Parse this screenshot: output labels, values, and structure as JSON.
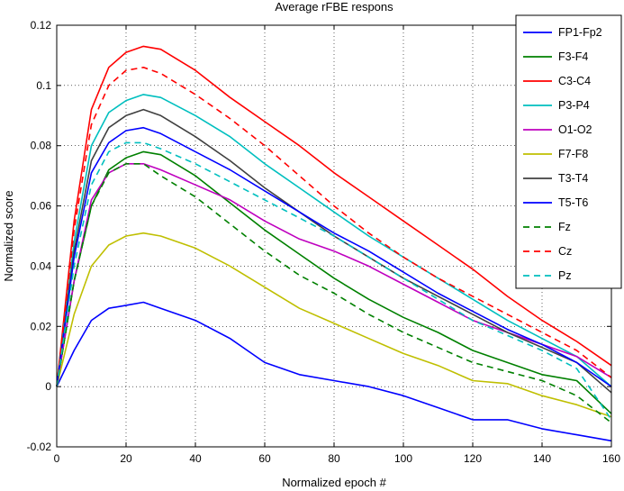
{
  "chart_data": {
    "type": "line",
    "title": "Average rFBE respons",
    "xlabel": "Normalized epoch #",
    "ylabel": "Normalized score",
    "xlim": [
      0,
      160
    ],
    "ylim": [
      -0.02,
      0.12
    ],
    "xticks": [
      0,
      20,
      40,
      60,
      80,
      100,
      120,
      140,
      160
    ],
    "yticks": [
      -0.02,
      0,
      0.02,
      0.04,
      0.06,
      0.08,
      0.1,
      0.12
    ],
    "grid": true,
    "legend_position": "top-right",
    "x": [
      0,
      5,
      10,
      15,
      20,
      25,
      30,
      40,
      50,
      60,
      70,
      80,
      90,
      100,
      110,
      120,
      130,
      140,
      150,
      160
    ],
    "series": [
      {
        "name": "FP1-Fp2",
        "color": "#0000ff",
        "dash": "solid",
        "values": [
          0,
          0.012,
          0.022,
          0.026,
          0.027,
          0.028,
          0.026,
          0.022,
          0.016,
          0.008,
          0.004,
          0.002,
          0.0,
          -0.003,
          -0.007,
          -0.011,
          -0.011,
          -0.014,
          -0.016,
          -0.018
        ]
      },
      {
        "name": "F3-F4",
        "color": "#008000",
        "dash": "solid",
        "values": [
          0,
          0.035,
          0.06,
          0.072,
          0.076,
          0.078,
          0.077,
          0.07,
          0.061,
          0.052,
          0.044,
          0.036,
          0.029,
          0.023,
          0.018,
          0.012,
          0.008,
          0.004,
          0.002,
          -0.009
        ]
      },
      {
        "name": "C3-C4",
        "color": "#ff0000",
        "dash": "solid",
        "values": [
          0,
          0.055,
          0.092,
          0.106,
          0.111,
          0.113,
          0.112,
          0.105,
          0.096,
          0.088,
          0.08,
          0.071,
          0.063,
          0.055,
          0.047,
          0.039,
          0.03,
          0.022,
          0.015,
          0.007
        ]
      },
      {
        "name": "P3-P4",
        "color": "#00bfbf",
        "dash": "solid",
        "values": [
          0,
          0.048,
          0.08,
          0.091,
          0.095,
          0.097,
          0.096,
          0.09,
          0.083,
          0.074,
          0.066,
          0.058,
          0.05,
          0.043,
          0.036,
          0.029,
          0.022,
          0.016,
          0.01,
          0.0
        ]
      },
      {
        "name": "O1-O2",
        "color": "#bf00bf",
        "dash": "solid",
        "values": [
          0,
          0.035,
          0.062,
          0.071,
          0.074,
          0.074,
          0.072,
          0.067,
          0.062,
          0.055,
          0.049,
          0.045,
          0.04,
          0.034,
          0.028,
          0.022,
          0.018,
          0.014,
          0.01,
          0.003
        ]
      },
      {
        "name": "F7-F8",
        "color": "#bfbf00",
        "dash": "solid",
        "values": [
          0,
          0.024,
          0.04,
          0.047,
          0.05,
          0.051,
          0.05,
          0.046,
          0.04,
          0.033,
          0.026,
          0.021,
          0.016,
          0.011,
          0.007,
          0.002,
          0.001,
          -0.003,
          -0.006,
          -0.01
        ]
      },
      {
        "name": "T3-T4",
        "color": "#404040",
        "dash": "solid",
        "values": [
          0,
          0.045,
          0.075,
          0.086,
          0.09,
          0.092,
          0.09,
          0.083,
          0.075,
          0.066,
          0.058,
          0.05,
          0.043,
          0.036,
          0.03,
          0.024,
          0.018,
          0.013,
          0.008,
          -0.002
        ]
      },
      {
        "name": "T5-T6",
        "color": "#0000ff",
        "dash": "solid",
        "values": [
          0,
          0.043,
          0.071,
          0.081,
          0.085,
          0.086,
          0.084,
          0.078,
          0.072,
          0.065,
          0.058,
          0.051,
          0.045,
          0.038,
          0.031,
          0.025,
          0.019,
          0.014,
          0.008,
          0.0
        ]
      },
      {
        "name": "Fz",
        "color": "#008000",
        "dash": "dashed",
        "values": [
          0,
          0.035,
          0.06,
          0.071,
          0.074,
          0.074,
          0.07,
          0.063,
          0.054,
          0.045,
          0.037,
          0.031,
          0.024,
          0.018,
          0.013,
          0.008,
          0.005,
          0.002,
          -0.003,
          -0.012
        ]
      },
      {
        "name": "Cz",
        "color": "#ff0000",
        "dash": "dashed",
        "values": [
          0,
          0.052,
          0.087,
          0.1,
          0.105,
          0.106,
          0.104,
          0.097,
          0.089,
          0.08,
          0.07,
          0.06,
          0.051,
          0.043,
          0.036,
          0.03,
          0.024,
          0.018,
          0.012,
          0.003
        ]
      },
      {
        "name": "Pz",
        "color": "#00bfbf",
        "dash": "dashed",
        "values": [
          0,
          0.04,
          0.067,
          0.078,
          0.081,
          0.081,
          0.079,
          0.074,
          0.068,
          0.062,
          0.056,
          0.05,
          0.043,
          0.036,
          0.029,
          0.022,
          0.017,
          0.012,
          0.006,
          -0.011
        ]
      }
    ]
  }
}
